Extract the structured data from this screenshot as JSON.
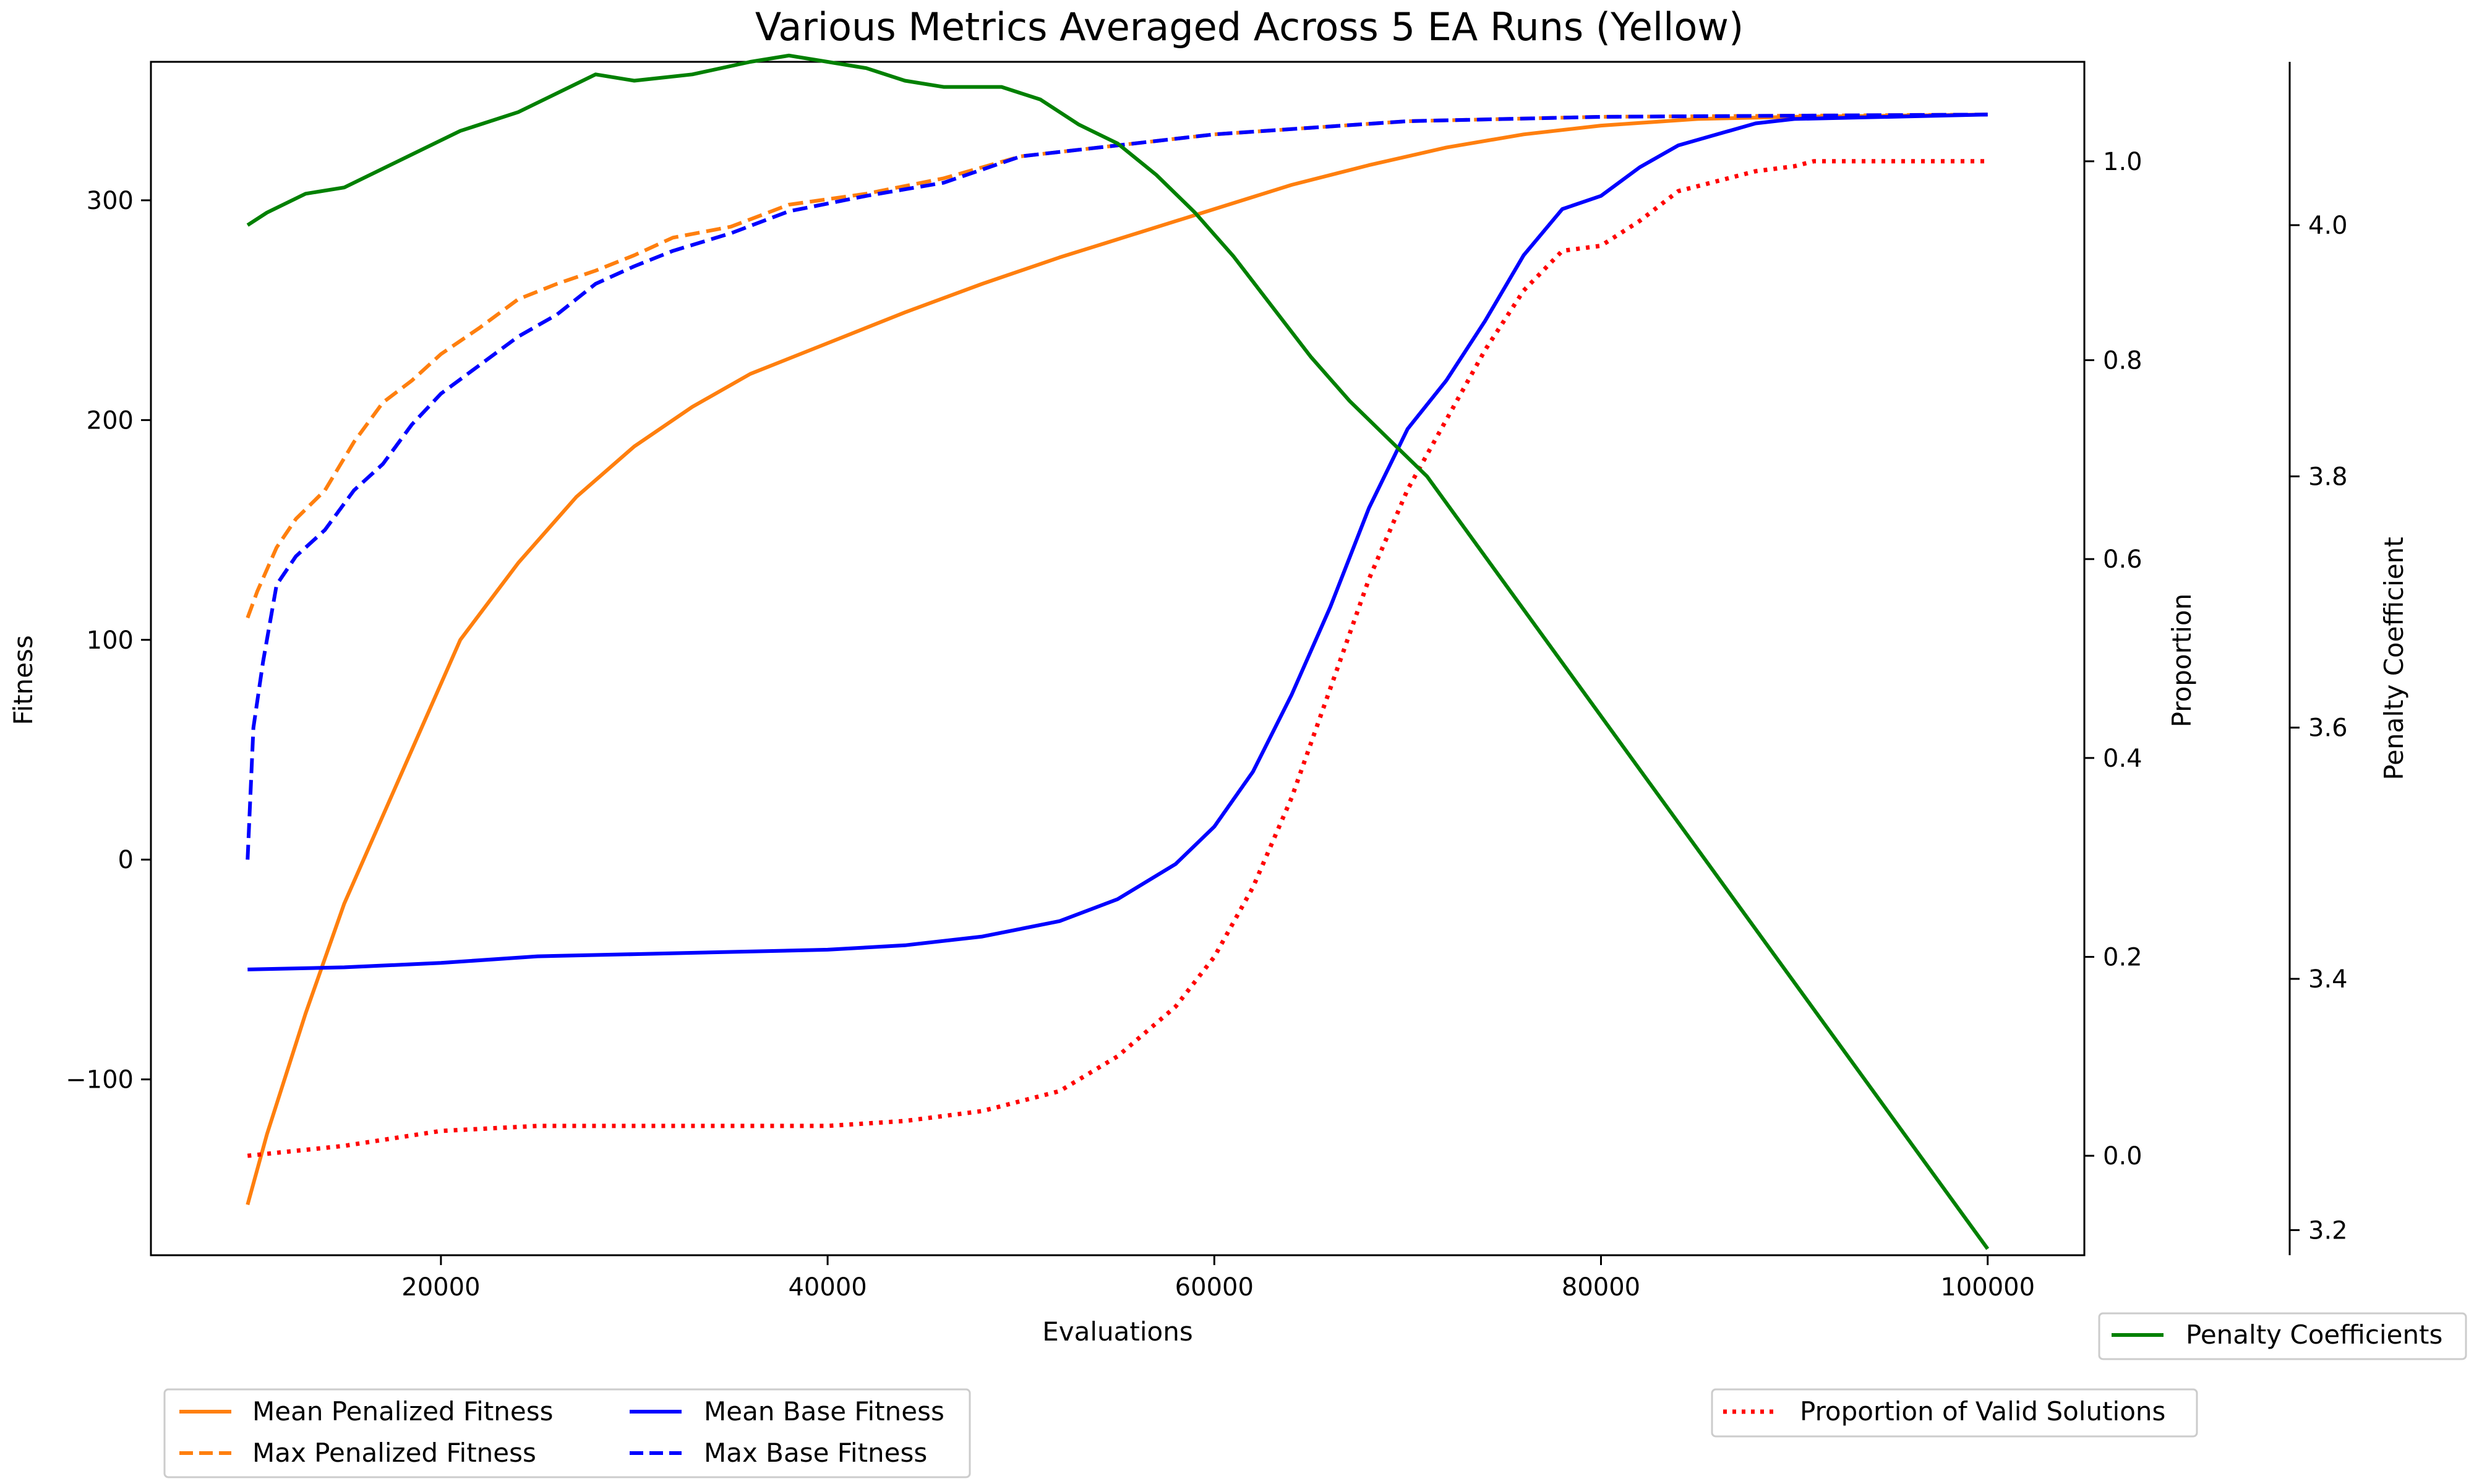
{
  "chart_data": {
    "type": "line",
    "title": "Various Metrics Averaged Across 5 EA Runs (Yellow)",
    "xlabel": "Evaluations",
    "xlim": [
      5000,
      105000
    ],
    "xticks": [
      20000,
      40000,
      60000,
      80000,
      100000
    ],
    "grid": false,
    "axes": {
      "fitness": {
        "label": "Fitness",
        "ylim": [
          -180,
          363
        ],
        "ticks": [
          -100,
          0,
          100,
          200,
          300
        ],
        "tick_labels": [
          "−100",
          "0",
          "100",
          "200",
          "300"
        ]
      },
      "proportion": {
        "label": "Proportion",
        "ylim": [
          -0.1,
          1.1
        ],
        "ticks": [
          0.0,
          0.2,
          0.4,
          0.6,
          0.8,
          1.0
        ],
        "tick_labels": [
          "0.0",
          "0.2",
          "0.4",
          "0.6",
          "0.8",
          "1.0"
        ]
      },
      "penalty": {
        "label": "Penalty Coefficient",
        "ylim": [
          3.18,
          4.13
        ],
        "ticks": [
          3.2,
          3.4,
          3.6,
          3.8,
          4.0
        ],
        "tick_labels": [
          "3.2",
          "3.4",
          "3.6",
          "3.8",
          "4.0"
        ]
      }
    },
    "legend_left": {
      "placement": "bottom-left",
      "entries": [
        "Mean Penalized Fitness",
        "Max Penalized Fitness",
        "Mean Base Fitness",
        "Max Base Fitness"
      ]
    },
    "legend_right_top": {
      "placement": "bottom-right",
      "entries": [
        "Penalty Coefficients"
      ]
    },
    "legend_right_bottom": {
      "placement": "bottom-right",
      "entries": [
        "Proportion of Valid Solutions"
      ]
    },
    "series": [
      {
        "name": "Mean Penalized Fitness",
        "axis": "fitness",
        "color": "#ff7f0e",
        "style": "solid",
        "points": [
          [
            10000,
            -157
          ],
          [
            11000,
            -125
          ],
          [
            13000,
            -70
          ],
          [
            15000,
            -20
          ],
          [
            17000,
            20
          ],
          [
            19000,
            60
          ],
          [
            21000,
            100
          ],
          [
            24000,
            135
          ],
          [
            27000,
            165
          ],
          [
            30000,
            188
          ],
          [
            33000,
            206
          ],
          [
            36000,
            221
          ],
          [
            40000,
            235
          ],
          [
            44000,
            249
          ],
          [
            48000,
            262
          ],
          [
            52000,
            274
          ],
          [
            56000,
            285
          ],
          [
            60000,
            296
          ],
          [
            64000,
            307
          ],
          [
            68000,
            316
          ],
          [
            72000,
            324
          ],
          [
            76000,
            330
          ],
          [
            80000,
            334
          ],
          [
            85000,
            337
          ],
          [
            90000,
            338
          ],
          [
            100000,
            339
          ]
        ]
      },
      {
        "name": "Max Penalized Fitness",
        "axis": "fitness",
        "color": "#ff7f0e",
        "style": "dashed",
        "points": [
          [
            10000,
            110
          ],
          [
            10500,
            122
          ],
          [
            11500,
            142
          ],
          [
            12500,
            155
          ],
          [
            14000,
            168
          ],
          [
            15500,
            190
          ],
          [
            17000,
            208
          ],
          [
            18500,
            218
          ],
          [
            20000,
            230
          ],
          [
            22000,
            242
          ],
          [
            24000,
            255
          ],
          [
            26000,
            262
          ],
          [
            28000,
            268
          ],
          [
            30000,
            275
          ],
          [
            32000,
            283
          ],
          [
            35000,
            288
          ],
          [
            38000,
            298
          ],
          [
            42000,
            303
          ],
          [
            46000,
            310
          ],
          [
            50000,
            320
          ],
          [
            55000,
            325
          ],
          [
            60000,
            330
          ],
          [
            65000,
            333
          ],
          [
            70000,
            336
          ],
          [
            80000,
            338
          ],
          [
            100000,
            339
          ]
        ]
      },
      {
        "name": "Mean Base Fitness",
        "axis": "fitness",
        "color": "#0000ff",
        "style": "solid",
        "points": [
          [
            10000,
            -50
          ],
          [
            15000,
            -49
          ],
          [
            20000,
            -47
          ],
          [
            25000,
            -44
          ],
          [
            30000,
            -43
          ],
          [
            35000,
            -42
          ],
          [
            40000,
            -41
          ],
          [
            44000,
            -39
          ],
          [
            48000,
            -35
          ],
          [
            52000,
            -28
          ],
          [
            55000,
            -18
          ],
          [
            58000,
            -2
          ],
          [
            60000,
            15
          ],
          [
            62000,
            40
          ],
          [
            64000,
            75
          ],
          [
            66000,
            115
          ],
          [
            68000,
            160
          ],
          [
            70000,
            196
          ],
          [
            72000,
            218
          ],
          [
            74000,
            245
          ],
          [
            76000,
            275
          ],
          [
            78000,
            296
          ],
          [
            80000,
            302
          ],
          [
            82000,
            315
          ],
          [
            84000,
            325
          ],
          [
            86000,
            330
          ],
          [
            88000,
            335
          ],
          [
            90000,
            337
          ],
          [
            100000,
            339
          ]
        ]
      },
      {
        "name": "Max Base Fitness",
        "axis": "fitness",
        "color": "#0000ff",
        "style": "dashed",
        "points": [
          [
            10000,
            0
          ],
          [
            10300,
            60
          ],
          [
            10800,
            90
          ],
          [
            11500,
            125
          ],
          [
            12500,
            138
          ],
          [
            14000,
            150
          ],
          [
            15500,
            168
          ],
          [
            17000,
            180
          ],
          [
            18500,
            198
          ],
          [
            20000,
            212
          ],
          [
            22000,
            225
          ],
          [
            24000,
            238
          ],
          [
            26000,
            248
          ],
          [
            28000,
            262
          ],
          [
            30000,
            270
          ],
          [
            32000,
            277
          ],
          [
            35000,
            285
          ],
          [
            38000,
            295
          ],
          [
            42000,
            302
          ],
          [
            46000,
            308
          ],
          [
            50000,
            320
          ],
          [
            55000,
            325
          ],
          [
            60000,
            330
          ],
          [
            65000,
            333
          ],
          [
            70000,
            336
          ],
          [
            80000,
            338
          ],
          [
            100000,
            339
          ]
        ]
      },
      {
        "name": "Proportion of Valid Solutions",
        "axis": "proportion",
        "color": "#ff0000",
        "style": "dotted",
        "points": [
          [
            10000,
            0.0
          ],
          [
            15000,
            0.01
          ],
          [
            20000,
            0.025
          ],
          [
            25000,
            0.03
          ],
          [
            30000,
            0.03
          ],
          [
            35000,
            0.03
          ],
          [
            40000,
            0.03
          ],
          [
            44000,
            0.035
          ],
          [
            48000,
            0.045
          ],
          [
            52000,
            0.065
          ],
          [
            55000,
            0.1
          ],
          [
            58000,
            0.15
          ],
          [
            60000,
            0.2
          ],
          [
            62000,
            0.27
          ],
          [
            64000,
            0.36
          ],
          [
            66000,
            0.47
          ],
          [
            68000,
            0.58
          ],
          [
            70000,
            0.67
          ],
          [
            72000,
            0.74
          ],
          [
            74000,
            0.81
          ],
          [
            76000,
            0.87
          ],
          [
            78000,
            0.91
          ],
          [
            80000,
            0.915
          ],
          [
            82000,
            0.94
          ],
          [
            84000,
            0.97
          ],
          [
            86000,
            0.98
          ],
          [
            88000,
            0.99
          ],
          [
            90000,
            0.995
          ],
          [
            91000,
            1.0
          ],
          [
            100000,
            1.0
          ]
        ]
      },
      {
        "name": "Penalty Coefficients",
        "axis": "penalty",
        "color": "#008000",
        "style": "solid",
        "points": [
          [
            10000,
            4.0
          ],
          [
            11000,
            4.01
          ],
          [
            13000,
            4.025
          ],
          [
            15000,
            4.03
          ],
          [
            17000,
            4.045
          ],
          [
            19000,
            4.06
          ],
          [
            21000,
            4.075
          ],
          [
            24000,
            4.09
          ],
          [
            26000,
            4.105
          ],
          [
            28000,
            4.12
          ],
          [
            30000,
            4.115
          ],
          [
            33000,
            4.12
          ],
          [
            36000,
            4.13
          ],
          [
            38000,
            4.135
          ],
          [
            40000,
            4.13
          ],
          [
            42000,
            4.125
          ],
          [
            44000,
            4.115
          ],
          [
            46000,
            4.11
          ],
          [
            49000,
            4.11
          ],
          [
            51000,
            4.1
          ],
          [
            53000,
            4.08
          ],
          [
            55000,
            4.065
          ],
          [
            57000,
            4.04
          ],
          [
            59000,
            4.01
          ],
          [
            61000,
            3.975
          ],
          [
            63000,
            3.935
          ],
          [
            65000,
            3.895
          ],
          [
            67000,
            3.86
          ],
          [
            69000,
            3.83
          ],
          [
            71000,
            3.8
          ],
          [
            100000,
            3.185
          ]
        ]
      }
    ]
  }
}
